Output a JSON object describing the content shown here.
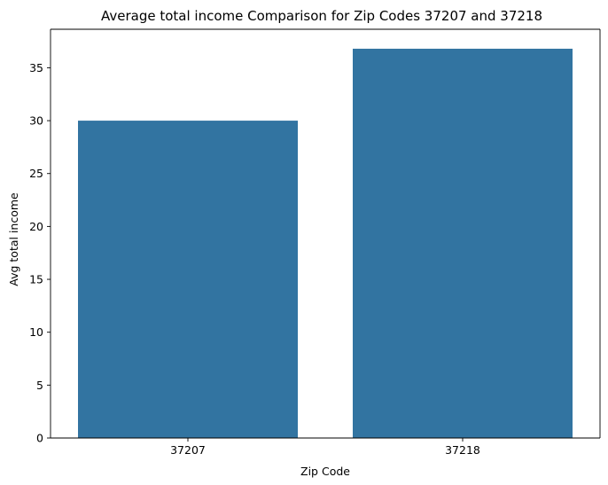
{
  "chart_data": {
    "type": "bar",
    "title": "Average total income Comparison for Zip Codes 37207 and 37218",
    "xlabel": "Zip Code",
    "ylabel": "Avg total income",
    "categories": [
      "37207",
      "37218"
    ],
    "values": [
      30.0,
      36.8
    ],
    "ylim": [
      0,
      38.64
    ],
    "yticks": [
      0,
      5,
      10,
      15,
      20,
      25,
      30,
      35
    ],
    "bar_color": "#3274a1",
    "grid": false,
    "legend": "none"
  }
}
